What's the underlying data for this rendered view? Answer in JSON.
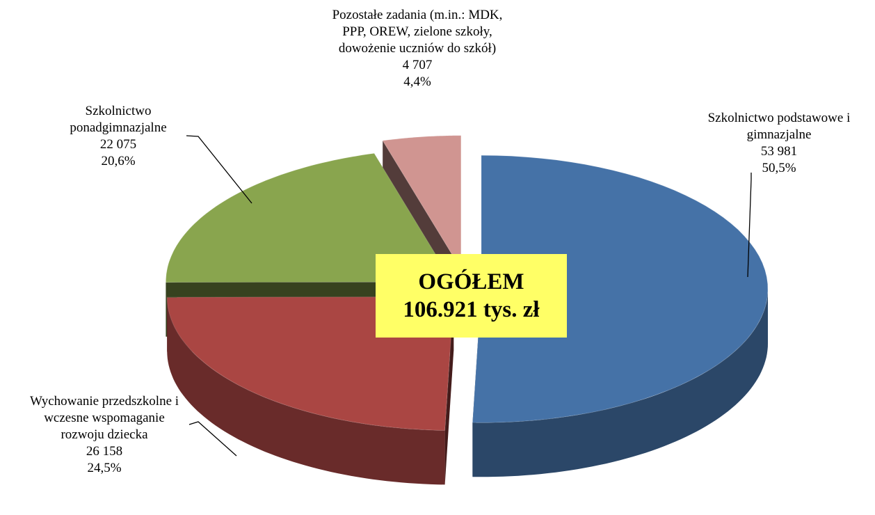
{
  "chart_data": {
    "type": "pie",
    "three_d": true,
    "categories": [
      "Szkolnictwo podstawowe i gimnazjalne",
      "Wychowanie przedszkolne i wczesne wspomaganie rozwoju dziecka",
      "Szkolnictwo ponadgimnazjalne",
      "Pozostałe zadania (m.in.: MDK, PPP, OREW, zielone szkoły, dowożenie uczniów do szkół)"
    ],
    "values": [
      53981,
      26158,
      22075,
      4707
    ],
    "value_labels": [
      "53 981",
      "26 158",
      "22 075",
      "4 707"
    ],
    "shares": [
      50.5,
      24.5,
      20.6,
      4.4
    ],
    "share_labels": [
      "50,5%",
      "24,5%",
      "20,6%",
      "4,4%"
    ],
    "colors": [
      "#4572a7",
      "#aa4643",
      "#89a54e",
      "#d09591"
    ],
    "annotation": [
      "OGÓŁEM",
      "106.921 tys. zł"
    ]
  }
}
